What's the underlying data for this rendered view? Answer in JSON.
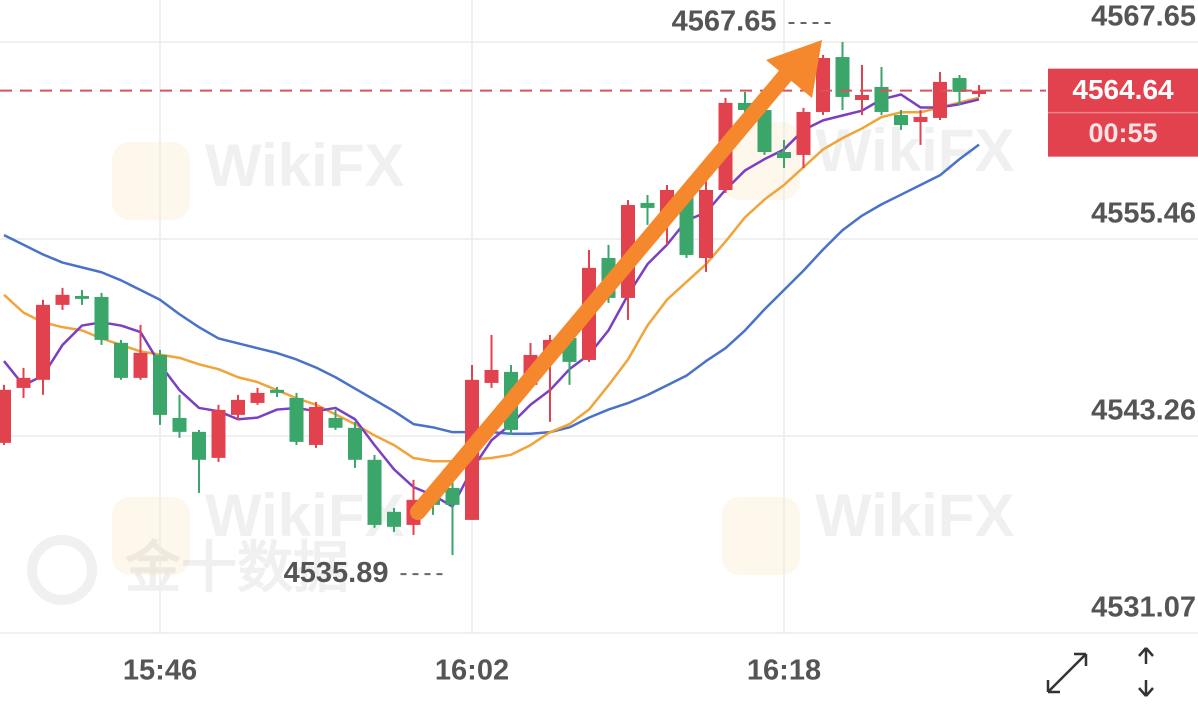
{
  "chart_data": {
    "type": "candlestick",
    "categories": [
      null,
      null,
      null,
      null,
      null,
      null,
      null,
      null,
      "15:46",
      null,
      null,
      null,
      null,
      null,
      null,
      null,
      null,
      null,
      null,
      null,
      null,
      null,
      null,
      null,
      "16:02",
      null,
      null,
      null,
      null,
      null,
      null,
      null,
      null,
      null,
      null,
      null,
      null,
      null,
      null,
      null,
      "16:18",
      null,
      null,
      null,
      null,
      null,
      null,
      null,
      null,
      null,
      null
    ],
    "open": [
      4542.84,
      4546.24,
      4546.74,
      4551.38,
      4551.93,
      4551.87,
      4549.03,
      4546.86,
      4548.28,
      4544.38,
      4543.52,
      4541.91,
      4544.57,
      4545.31,
      4546.12,
      4545.62,
      4542.71,
      4544.38,
      4543.77,
      4541.79,
      4538.57,
      4537.76,
      4539.62,
      4540.05,
      4538.07,
      4546.55,
      4547.23,
      4546.43,
      4548.1,
      4549.33,
      4547.97,
      4554.28,
      4551.81,
      4557.69,
      4556.95,
      4558.37,
      4554.28,
      4558.49,
      4563.88,
      4563.44,
      4560.84,
      4560.66,
      4563.32,
      4566.72,
      4564.06,
      4564.87,
      4563.13,
      4562.7,
      4562.95,
      4565.42,
      4564.43
    ],
    "high": [
      4546.43,
      4547.48,
      4551.69,
      4552.43,
      4552.3,
      4552.12,
      4549.21,
      4550.14,
      4548.59,
      4545.81,
      4543.64,
      4545.19,
      4545.81,
      4546.24,
      4546.3,
      4545.93,
      4545.37,
      4544.88,
      4544.14,
      4542.09,
      4538.81,
      4540.55,
      4540.24,
      4540.55,
      4547.66,
      4549.52,
      4547.66,
      4549.02,
      4549.52,
      4549.52,
      4554.78,
      4555.09,
      4557.87,
      4558.18,
      4558.8,
      4558.8,
      4559.11,
      4564.19,
      4564.56,
      4564.06,
      4561.59,
      4563.57,
      4566.85,
      4567.65,
      4566.23,
      4566.1,
      4563.44,
      4563.44,
      4565.79,
      4565.61,
      4564.99
    ],
    "low": [
      4542.71,
      4545.62,
      4545.81,
      4551.07,
      4551.38,
      4548.9,
      4546.74,
      4546.74,
      4543.95,
      4543.15,
      4539.74,
      4541.66,
      4544.26,
      4545.19,
      4545.68,
      4542.71,
      4542.53,
      4543.64,
      4541.29,
      4537.58,
      4537.33,
      4537.14,
      4538.38,
      4535.89,
      4538.07,
      4546.24,
      4543.33,
      4546.12,
      4544.14,
      4546.43,
      4547.85,
      4551.5,
      4550.45,
      4556.33,
      4555.09,
      4554.28,
      4553.42,
      4558.31,
      4563.13,
      4560.66,
      4559.85,
      4559.85,
      4563.13,
      4563.44,
      4563.13,
      4563.13,
      4562.21,
      4561.28,
      4562.82,
      4563.75,
      4564.25
    ],
    "close": [
      4546.12,
      4546.86,
      4551.38,
      4552.0,
      4551.75,
      4549.21,
      4546.86,
      4548.41,
      4544.57,
      4543.52,
      4541.79,
      4544.88,
      4545.5,
      4545.93,
      4545.93,
      4542.9,
      4545.06,
      4543.77,
      4541.79,
      4537.76,
      4537.64,
      4539.31,
      4539.0,
      4539.0,
      4546.74,
      4547.35,
      4543.64,
      4548.28,
      4549.21,
      4547.85,
      4553.67,
      4551.81,
      4557.56,
      4557.38,
      4558.49,
      4554.47,
      4558.49,
      4563.88,
      4563.44,
      4560.84,
      4560.47,
      4563.32,
      4566.66,
      4564.25,
      4564.37,
      4563.32,
      4562.51,
      4563.01,
      4565.18,
      4564.56,
      4564.64
    ],
    "up_color": "#e2424e",
    "down_color": "#3aa66a",
    "lines": [
      {
        "color": "#4a72c8",
        "values": [
          4555.7,
          4555.1,
          4554.5,
          4554.0,
          4553.7,
          4553.4,
          4552.9,
          4552.3,
          4551.7,
          4550.8,
          4550.0,
          4549.3,
          4549.0,
          4548.7,
          4548.4,
          4548.0,
          4547.5,
          4546.9,
          4546.2,
          4545.5,
          4544.8,
          4544.0,
          4543.8,
          4543.5,
          4543.5,
          4543.5,
          4543.4,
          4543.4,
          4543.5,
          4543.8,
          4544.4,
          4544.9,
          4545.3,
          4545.8,
          4546.4,
          4547.0,
          4547.9,
          4548.7,
          4549.8,
          4551.1,
          4552.3,
          4553.5,
          4554.8,
          4556.0,
          4556.9,
          4557.6,
          4558.2,
          4558.8,
          4559.4,
          4560.4,
          4561.3
        ]
      },
      {
        "color": "#f0a43a",
        "values": [
          4552.0,
          4550.9,
          4550.3,
          4550.0,
          4549.8,
          4549.3,
          4548.9,
          4548.5,
          4548.3,
          4548.1,
          4547.7,
          4547.4,
          4546.9,
          4546.6,
          4546.1,
          4545.6,
          4545.2,
          4544.6,
          4544.0,
          4543.3,
          4542.7,
          4541.9,
          4541.7,
          4541.7,
          4541.8,
          4541.9,
          4542.1,
          4542.7,
          4543.5,
          4544.0,
          4544.9,
          4546.4,
          4548.0,
          4550.1,
          4551.7,
          4552.8,
          4553.9,
          4555.3,
          4556.8,
          4557.9,
          4558.8,
          4559.9,
          4561.0,
          4561.7,
          4562.3,
          4563.0,
          4563.3,
          4563.3,
          4563.6,
          4563.9,
          4564.2
        ]
      },
      {
        "color": "#7b3fc4",
        "values": [
          4547.9,
          4546.4,
          4547.0,
          4548.9,
          4550.1,
          4550.3,
          4550.1,
          4549.7,
          4547.7,
          4546.1,
          4545.0,
          4544.8,
          4544.3,
          4544.4,
          4544.9,
          4545.0,
          4544.8,
          4545.0,
          4544.3,
          4542.7,
          4541.2,
          4540.1,
          4539.6,
          4538.9,
          4541.2,
          4543.0,
          4544.0,
          4545.2,
          4546.1,
          4547.4,
          4548.3,
          4549.8,
          4552.0,
          4553.9,
          4555.1,
          4556.6,
          4557.1,
          4558.5,
          4559.7,
          4560.4,
          4561.0,
          4562.2,
          4562.8,
          4563.1,
          4563.4,
          4564.1,
          4564.4,
          4563.6,
          4563.6,
          4563.8,
          4564.1
        ]
      }
    ],
    "ylim": [
      4531.07,
      4570.25
    ],
    "yticks": [
      4531.07,
      4543.26,
      4555.46,
      4567.65
    ],
    "grid": true,
    "countdown": "00:55",
    "watermark": "WikiFX",
    "watermark_cn": "金十数据"
  }
}
